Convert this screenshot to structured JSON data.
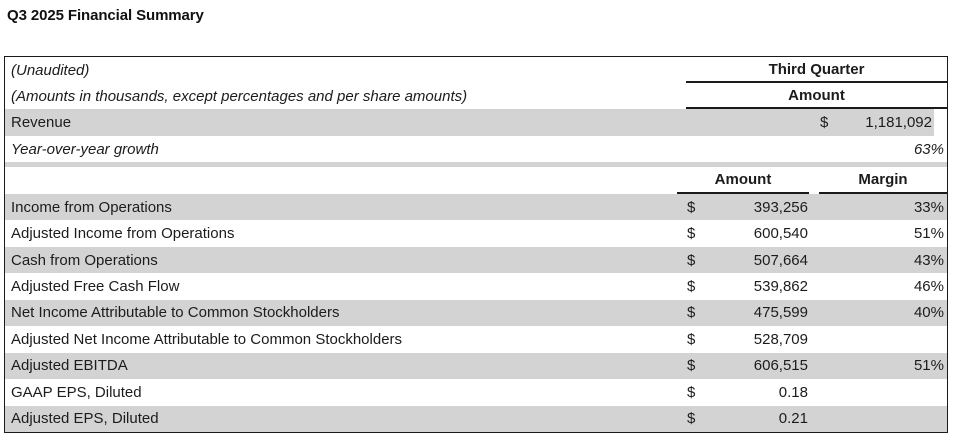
{
  "page": {
    "title": "Q3 2025 Financial Summary"
  },
  "table": {
    "notes": {
      "line1": "(Unaudited)",
      "line2": "(Amounts in thousands, except percentages and per share amounts)"
    },
    "top_header": {
      "quarter_label": "Third Quarter",
      "amount_label": "Amount"
    },
    "revenue_row": {
      "label": "Revenue",
      "currency": "$",
      "amount": "1,181,092"
    },
    "growth_row": {
      "label": "Year-over-year growth",
      "value": "63%"
    },
    "columns": {
      "amount": "Amount",
      "margin": "Margin"
    },
    "rows": [
      {
        "label": "Income from Operations",
        "currency": "$",
        "amount": "393,256",
        "margin": "33%"
      },
      {
        "label": "Adjusted Income from Operations",
        "currency": "$",
        "amount": "600,540",
        "margin": "51%"
      },
      {
        "label": "Cash from Operations",
        "currency": "$",
        "amount": "507,664",
        "margin": "43%"
      },
      {
        "label": "Adjusted Free Cash Flow",
        "currency": "$",
        "amount": "539,862",
        "margin": "46%"
      },
      {
        "label": "Net Income Attributable to Common Stockholders",
        "currency": "$",
        "amount": "475,599",
        "margin": "40%"
      },
      {
        "label": "Adjusted Net Income Attributable to Common Stockholders",
        "currency": "$",
        "amount": "528,709",
        "margin": ""
      },
      {
        "label": "Adjusted EBITDA",
        "currency": "$",
        "amount": "606,515",
        "margin": "51%"
      },
      {
        "label": "GAAP EPS, Diluted",
        "currency": "$",
        "amount": "0.18",
        "margin": ""
      },
      {
        "label": "Adjusted EPS, Diluted",
        "currency": "$",
        "amount": "0.21",
        "margin": ""
      }
    ],
    "colors": {
      "row_highlight": "#d3d3d3",
      "border": "#1a1a1a",
      "text": "#1c1c1e"
    }
  }
}
